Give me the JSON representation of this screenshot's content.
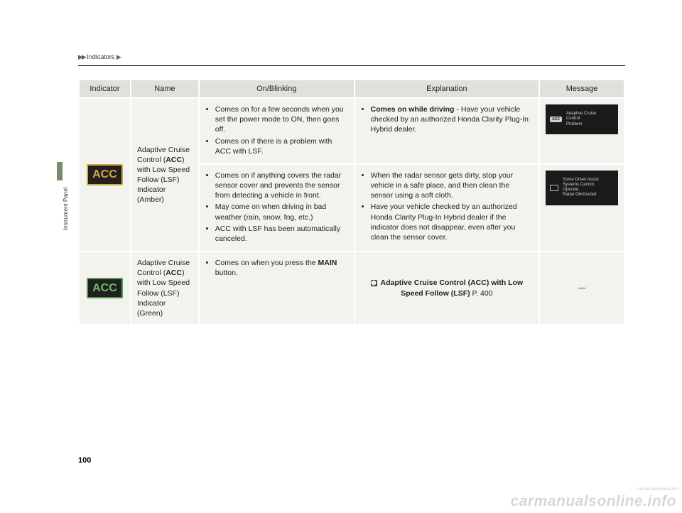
{
  "breadcrumb": {
    "arrows": "▶▶",
    "section": "Indicators",
    "trail_arrow": "▶"
  },
  "sidebar": {
    "tab_color": "#7a8a6a",
    "label": "Instrument Panel"
  },
  "page_number": "100",
  "watermark_small": "carmanualsonline.info",
  "watermark_large": "carmanualsonline.info",
  "table": {
    "headers": {
      "indicator": "Indicator",
      "name": "Name",
      "on_blinking": "On/Blinking",
      "explanation": "Explanation",
      "message": "Message"
    },
    "rows": {
      "acc_amber": {
        "indicator_text": "ACC",
        "indicator_border_color": "#d2a847",
        "name_pre": "Adaptive Cruise Control (",
        "name_bold": "ACC",
        "name_post": ") with Low Speed Follow (LSF) Indicator (Amber)",
        "block1": {
          "bullets": [
            "Comes on for a few seconds when you set the power mode to ON, then goes off.",
            "Comes on if there is a problem with ACC with LSF."
          ],
          "explanation_bold": "Comes on while driving",
          "explanation_rest": " - Have your vehicle checked by an authorized Honda Clarity Plug-In Hybrid dealer.",
          "message": {
            "icon_label": "ACC",
            "lines": "Adaptive Cruise\nControl\nProblem"
          }
        },
        "block2": {
          "bullets": [
            "Comes on if anything covers the radar sensor cover and prevents the sensor from detecting a vehicle in front.",
            "May come on when driving in bad weather (rain, snow, fog, etc.)",
            "ACC with LSF has been automatically canceled."
          ],
          "exp_bullets": [
            "When the radar sensor gets dirty, stop your vehicle in a safe place, and then clean the sensor using a soft cloth.",
            "Have your vehicle checked by an authorized Honda Clarity Plug-In Hybrid dealer if the indicator does not disappear, even after you clean the sensor cover."
          ],
          "message": {
            "lines": "Some Driver Assist\nSystems Cannot\nOperate:\nRadar Obstructed"
          }
        }
      },
      "acc_green": {
        "indicator_text": "ACC",
        "indicator_border_color": "#4fa04f",
        "name_pre": "Adaptive Cruise Control (",
        "name_bold": "ACC",
        "name_post": ") with Low Speed Follow (LSF) Indicator (Green)",
        "bullet_pre": "Comes on when you press the ",
        "bullet_bold": "MAIN",
        "bullet_post": " button.",
        "ref_text": "Adaptive Cruise Control (ACC) with Low Speed Follow (LSF)",
        "ref_page": " P. 400",
        "message_dash": "—"
      }
    }
  },
  "style": {
    "header_bg": "#dfe1dd",
    "cell_bg": "#f2f2ef",
    "msg_bg": "#1a1a1a",
    "msg_fg": "#cfcfcf"
  }
}
